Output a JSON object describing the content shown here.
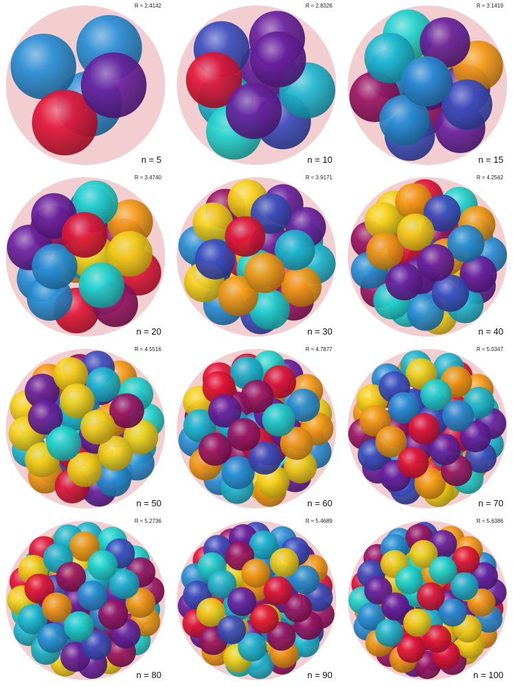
{
  "panels": [
    {
      "id": "p5",
      "n_label": "n = 5",
      "r_label": "R ≈ 2.4142",
      "n": 5,
      "R": 2.4142
    },
    {
      "id": "p10",
      "n_label": "n = 10",
      "r_label": "R ≈ 2.8326",
      "n": 10,
      "R": 2.8326
    },
    {
      "id": "p15",
      "n_label": "n = 15",
      "r_label": "R ≈ 3.1419",
      "n": 15,
      "R": 3.1419
    },
    {
      "id": "p20",
      "n_label": "n = 20",
      "r_label": "R ≈ 3.4740",
      "n": 20,
      "R": 3.474
    },
    {
      "id": "p30",
      "n_label": "n = 30",
      "r_label": "R ≈ 3.9171",
      "n": 30,
      "R": 3.9171
    },
    {
      "id": "p40",
      "n_label": "n = 40",
      "r_label": "R ≈ 4.2562",
      "n": 40,
      "R": 4.2562
    },
    {
      "id": "p50",
      "n_label": "n = 50",
      "r_label": "R ≈ 4.5516",
      "n": 50,
      "R": 4.5516
    },
    {
      "id": "p60",
      "n_label": "n = 60",
      "r_label": "R ≈ 4.7877",
      "n": 60,
      "R": 4.7877
    },
    {
      "id": "p70",
      "n_label": "n = 70",
      "r_label": "R ≈ 5.0347",
      "n": 70,
      "R": 5.0347
    },
    {
      "id": "p80",
      "n_label": "n = 80",
      "r_label": "R ≈ 5.2736",
      "n": 80,
      "R": 5.2736
    },
    {
      "id": "p90",
      "n_label": "n = 90",
      "r_label": "R ≈ 5.4689",
      "n": 90,
      "R": 5.4689
    },
    {
      "id": "p100",
      "n_label": "n = 100",
      "r_label": "R ≈ 5.6386",
      "n": 100,
      "R": 5.6386
    }
  ],
  "colors": {
    "container": "#f2c9cb",
    "spheres": [
      "#f6d21a",
      "#9b1665",
      "#3e4fc0",
      "#f49a16",
      "#1fb8d2",
      "#e3173a",
      "#6a22a0",
      "#2a8fd6",
      "#22d4cf"
    ]
  }
}
